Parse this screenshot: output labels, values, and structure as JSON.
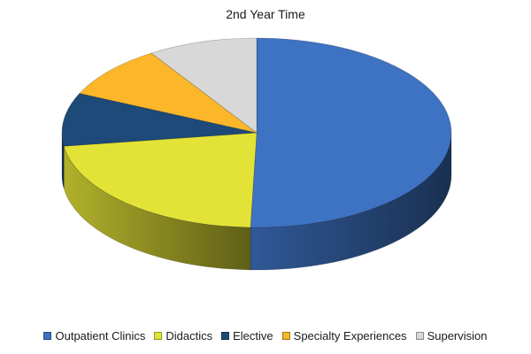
{
  "chart_data": {
    "type": "pie",
    "title": "2nd Year Time",
    "legend_position": "bottom",
    "style": "3d",
    "series": [
      {
        "name": "Outpatient Clinics",
        "value": 50,
        "color": "#3E72C2"
      },
      {
        "name": "Didactics",
        "value": 22,
        "color": "#E3E337"
      },
      {
        "name": "Elective",
        "value": 9,
        "color": "#1D4A78"
      },
      {
        "name": "Specialty Experiences",
        "value": 9,
        "color": "#FBB62A"
      },
      {
        "name": "Supervision",
        "value": 9,
        "color": "#D8D8D8"
      }
    ]
  }
}
